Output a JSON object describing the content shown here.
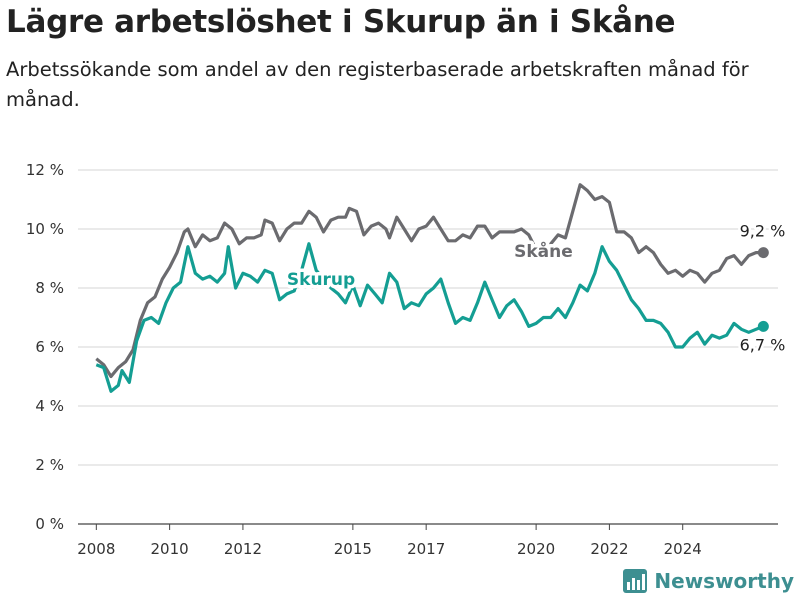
{
  "header": {
    "title": "Lägre arbetslöshet i Skurup än i Skåne",
    "subtitle": "Arbetssökande som andel av den registerbaserade arbetskraften månad för månad."
  },
  "brand": {
    "name": "Newsworthy",
    "color": "#3d8f91"
  },
  "chart_data": {
    "type": "line",
    "title": "Lägre arbetslöshet i Skurup än i Skåne",
    "subtitle": "Arbetssökande som andel av den registerbaserade arbetskraften månad för månad.",
    "ylim": [
      0,
      12
    ],
    "yticks": [
      0,
      2,
      4,
      6,
      8,
      10,
      12
    ],
    "ytick_labels": [
      "0 %",
      "2 %",
      "4 %",
      "6 %",
      "8 %",
      "10 %",
      "12 %"
    ],
    "xlim": [
      2007.5,
      2025.8
    ],
    "xticks": [
      2008,
      2010,
      2012,
      2015,
      2017,
      2020,
      2022,
      2024
    ],
    "xtick_labels": [
      "2008",
      "2010",
      "2012",
      "2015",
      "2017",
      "2020",
      "2022",
      "2024"
    ],
    "grid": true,
    "series": [
      {
        "name": "Skåne",
        "color": "#6b6b6f",
        "end_label": "9,2 %",
        "points": [
          [
            2008.0,
            5.6
          ],
          [
            2008.2,
            5.4
          ],
          [
            2008.4,
            5.0
          ],
          [
            2008.6,
            5.3
          ],
          [
            2008.8,
            5.5
          ],
          [
            2009.0,
            5.9
          ],
          [
            2009.2,
            6.9
          ],
          [
            2009.4,
            7.5
          ],
          [
            2009.6,
            7.7
          ],
          [
            2009.8,
            8.3
          ],
          [
            2010.0,
            8.7
          ],
          [
            2010.2,
            9.2
          ],
          [
            2010.4,
            9.9
          ],
          [
            2010.5,
            10.0
          ],
          [
            2010.7,
            9.4
          ],
          [
            2010.9,
            9.8
          ],
          [
            2011.1,
            9.6
          ],
          [
            2011.3,
            9.7
          ],
          [
            2011.5,
            10.2
          ],
          [
            2011.7,
            10.0
          ],
          [
            2011.9,
            9.5
          ],
          [
            2012.1,
            9.7
          ],
          [
            2012.3,
            9.7
          ],
          [
            2012.5,
            9.8
          ],
          [
            2012.6,
            10.3
          ],
          [
            2012.8,
            10.2
          ],
          [
            2013.0,
            9.6
          ],
          [
            2013.2,
            10.0
          ],
          [
            2013.4,
            10.2
          ],
          [
            2013.6,
            10.2
          ],
          [
            2013.8,
            10.6
          ],
          [
            2014.0,
            10.4
          ],
          [
            2014.2,
            9.9
          ],
          [
            2014.4,
            10.3
          ],
          [
            2014.6,
            10.4
          ],
          [
            2014.8,
            10.4
          ],
          [
            2014.9,
            10.7
          ],
          [
            2015.1,
            10.6
          ],
          [
            2015.3,
            9.8
          ],
          [
            2015.5,
            10.1
          ],
          [
            2015.7,
            10.2
          ],
          [
            2015.9,
            10.0
          ],
          [
            2016.0,
            9.7
          ],
          [
            2016.2,
            10.4
          ],
          [
            2016.4,
            10.0
          ],
          [
            2016.6,
            9.6
          ],
          [
            2016.8,
            10.0
          ],
          [
            2017.0,
            10.1
          ],
          [
            2017.2,
            10.4
          ],
          [
            2017.4,
            10.0
          ],
          [
            2017.6,
            9.6
          ],
          [
            2017.8,
            9.6
          ],
          [
            2018.0,
            9.8
          ],
          [
            2018.2,
            9.7
          ],
          [
            2018.4,
            10.1
          ],
          [
            2018.6,
            10.1
          ],
          [
            2018.8,
            9.7
          ],
          [
            2019.0,
            9.9
          ],
          [
            2019.2,
            9.9
          ],
          [
            2019.4,
            9.9
          ],
          [
            2019.6,
            10.0
          ],
          [
            2019.8,
            9.8
          ],
          [
            2020.0,
            9.3
          ],
          [
            2020.2,
            9.2
          ],
          [
            2020.4,
            9.5
          ],
          [
            2020.6,
            9.8
          ],
          [
            2020.8,
            9.7
          ],
          [
            2021.0,
            10.6
          ],
          [
            2021.2,
            11.5
          ],
          [
            2021.4,
            11.3
          ],
          [
            2021.6,
            11.0
          ],
          [
            2021.8,
            11.1
          ],
          [
            2022.0,
            10.9
          ],
          [
            2022.2,
            9.9
          ],
          [
            2022.4,
            9.9
          ],
          [
            2022.6,
            9.7
          ],
          [
            2022.8,
            9.2
          ],
          [
            2023.0,
            9.4
          ],
          [
            2023.2,
            9.2
          ],
          [
            2023.4,
            8.8
          ],
          [
            2023.6,
            8.5
          ],
          [
            2023.8,
            8.6
          ],
          [
            2024.0,
            8.4
          ],
          [
            2024.2,
            8.6
          ],
          [
            2024.4,
            8.5
          ],
          [
            2024.6,
            8.2
          ],
          [
            2024.8,
            8.5
          ],
          [
            2025.0,
            8.6
          ],
          [
            2025.2,
            9.0
          ],
          [
            2025.4,
            9.1
          ],
          [
            2025.6,
            8.8
          ],
          [
            2025.8,
            9.1
          ],
          [
            2026.0,
            9.2
          ],
          [
            2026.2,
            9.2
          ]
        ]
      },
      {
        "name": "Skurup",
        "color": "#149e93",
        "end_label": "6,7 %",
        "points": [
          [
            2008.0,
            5.4
          ],
          [
            2008.2,
            5.3
          ],
          [
            2008.4,
            4.5
          ],
          [
            2008.6,
            4.7
          ],
          [
            2008.7,
            5.2
          ],
          [
            2008.9,
            4.8
          ],
          [
            2009.1,
            6.2
          ],
          [
            2009.3,
            6.9
          ],
          [
            2009.5,
            7.0
          ],
          [
            2009.7,
            6.8
          ],
          [
            2009.9,
            7.5
          ],
          [
            2010.1,
            8.0
          ],
          [
            2010.3,
            8.2
          ],
          [
            2010.5,
            9.4
          ],
          [
            2010.7,
            8.5
          ],
          [
            2010.9,
            8.3
          ],
          [
            2011.1,
            8.4
          ],
          [
            2011.3,
            8.2
          ],
          [
            2011.5,
            8.5
          ],
          [
            2011.6,
            9.4
          ],
          [
            2011.8,
            8.0
          ],
          [
            2012.0,
            8.5
          ],
          [
            2012.2,
            8.4
          ],
          [
            2012.4,
            8.2
          ],
          [
            2012.6,
            8.6
          ],
          [
            2012.8,
            8.5
          ],
          [
            2013.0,
            7.6
          ],
          [
            2013.2,
            7.8
          ],
          [
            2013.4,
            7.9
          ],
          [
            2013.6,
            8.6
          ],
          [
            2013.8,
            9.5
          ],
          [
            2014.0,
            8.6
          ],
          [
            2014.2,
            8.3
          ],
          [
            2014.4,
            8.0
          ],
          [
            2014.6,
            7.8
          ],
          [
            2014.8,
            7.5
          ],
          [
            2015.0,
            8.1
          ],
          [
            2015.2,
            7.4
          ],
          [
            2015.4,
            8.1
          ],
          [
            2015.6,
            7.8
          ],
          [
            2015.8,
            7.5
          ],
          [
            2016.0,
            8.5
          ],
          [
            2016.2,
            8.2
          ],
          [
            2016.4,
            7.3
          ],
          [
            2016.6,
            7.5
          ],
          [
            2016.8,
            7.4
          ],
          [
            2017.0,
            7.8
          ],
          [
            2017.2,
            8.0
          ],
          [
            2017.4,
            8.3
          ],
          [
            2017.6,
            7.5
          ],
          [
            2017.8,
            6.8
          ],
          [
            2018.0,
            7.0
          ],
          [
            2018.2,
            6.9
          ],
          [
            2018.4,
            7.5
          ],
          [
            2018.6,
            8.2
          ],
          [
            2018.8,
            7.6
          ],
          [
            2019.0,
            7.0
          ],
          [
            2019.2,
            7.4
          ],
          [
            2019.4,
            7.6
          ],
          [
            2019.6,
            7.2
          ],
          [
            2019.8,
            6.7
          ],
          [
            2020.0,
            6.8
          ],
          [
            2020.2,
            7.0
          ],
          [
            2020.4,
            7.0
          ],
          [
            2020.6,
            7.3
          ],
          [
            2020.8,
            7.0
          ],
          [
            2021.0,
            7.5
          ],
          [
            2021.2,
            8.1
          ],
          [
            2021.4,
            7.9
          ],
          [
            2021.6,
            8.5
          ],
          [
            2021.8,
            9.4
          ],
          [
            2022.0,
            8.9
          ],
          [
            2022.2,
            8.6
          ],
          [
            2022.4,
            8.1
          ],
          [
            2022.6,
            7.6
          ],
          [
            2022.8,
            7.3
          ],
          [
            2023.0,
            6.9
          ],
          [
            2023.2,
            6.9
          ],
          [
            2023.4,
            6.8
          ],
          [
            2023.6,
            6.5
          ],
          [
            2023.8,
            6.0
          ],
          [
            2024.0,
            6.0
          ],
          [
            2024.2,
            6.3
          ],
          [
            2024.4,
            6.5
          ],
          [
            2024.6,
            6.1
          ],
          [
            2024.8,
            6.4
          ],
          [
            2025.0,
            6.3
          ],
          [
            2025.2,
            6.4
          ],
          [
            2025.4,
            6.8
          ],
          [
            2025.6,
            6.6
          ],
          [
            2025.8,
            6.5
          ],
          [
            2026.0,
            6.6
          ],
          [
            2026.2,
            6.7
          ]
        ]
      }
    ]
  }
}
